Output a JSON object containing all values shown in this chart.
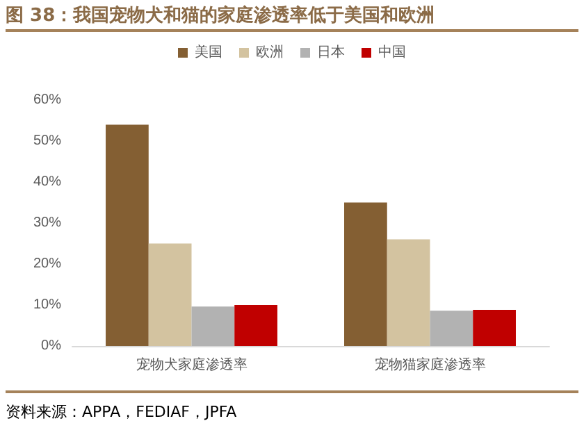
{
  "chart_data": {
    "type": "bar",
    "title": "图 38：我国宠物犬和猫的家庭渗透率低于美国和欧洲",
    "categories": [
      "宠物犬家庭渗透率",
      "宠物猫家庭渗透率"
    ],
    "series": [
      {
        "name": "美国",
        "color": "#845f33",
        "values": [
          54,
          35
        ]
      },
      {
        "name": "欧洲",
        "color": "#d3c3a0",
        "values": [
          25,
          26
        ]
      },
      {
        "name": "日本",
        "color": "#b2b2b2",
        "values": [
          9.6,
          8.6
        ]
      },
      {
        "name": "中国",
        "color": "#c00000",
        "values": [
          10,
          8.8
        ]
      }
    ],
    "ylim": [
      0,
      60
    ],
    "yticks": [
      {
        "value": 0,
        "label": "0%"
      },
      {
        "value": 10,
        "label": "10%"
      },
      {
        "value": 20,
        "label": "20%"
      },
      {
        "value": 30,
        "label": "30%"
      },
      {
        "value": 40,
        "label": "40%"
      },
      {
        "value": 50,
        "label": "50%"
      },
      {
        "value": 60,
        "label": "60%"
      }
    ],
    "grid": false,
    "legend": "top",
    "annotations": [
      "资料来源：APPA，FEDIAF，JPFA"
    ]
  }
}
